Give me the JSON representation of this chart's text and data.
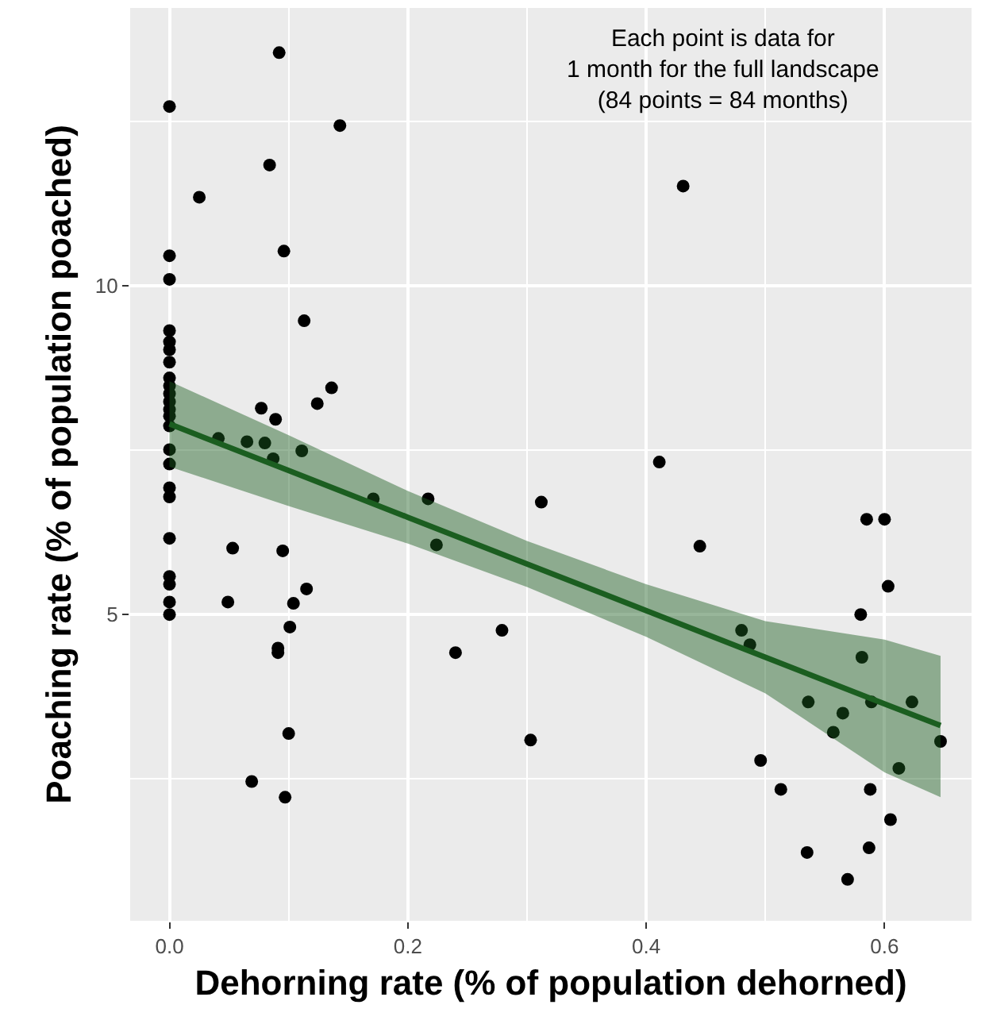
{
  "chart_data": {
    "type": "scatter",
    "xlabel": "Dehorning rate (% of population dehorned)",
    "ylabel": "Poaching rate (% of population poached)",
    "annotations": [
      "Each point is data for\n1 month for the full landscape\n(84 points = 84 months)"
    ],
    "xlim": [
      -0.033,
      0.673
    ],
    "ylim": [
      0.34,
      14.23
    ],
    "xticks": [
      {
        "value": 0,
        "label": "0.0"
      },
      {
        "value": 0.2,
        "label": "0.2"
      },
      {
        "value": 0.4,
        "label": "0.4"
      },
      {
        "value": 0.6,
        "label": "0.6"
      }
    ],
    "yticks": [
      5,
      10
    ],
    "grid": true,
    "marker": "circle",
    "series": [
      {
        "color": "#000000",
        "x": [
          0,
          0,
          0,
          0,
          0,
          0,
          0,
          0,
          0,
          0,
          0,
          0,
          0,
          0,
          0,
          0,
          0,
          0,
          0,
          0,
          0,
          0,
          0,
          0.092,
          0.143,
          0.084,
          0.025,
          0.096,
          0.113,
          0.136,
          0.124,
          0.077,
          0.089,
          0.041,
          0.065,
          0.08,
          0.111,
          0.087,
          0.171,
          0.217,
          0.224,
          0.312,
          0.053,
          0.095,
          0.115,
          0.049,
          0.104,
          0.101,
          0.091,
          0.091,
          0.24,
          0.279,
          0.1,
          0.069,
          0.097,
          0.303,
          0.431,
          0.411,
          0.445,
          0.48,
          0.487,
          0.496,
          0.513,
          0.536,
          0.535,
          0.565,
          0.557,
          0.569,
          0.58,
          0.581,
          0.589,
          0.585,
          0.6,
          0.603,
          0.623,
          0.612,
          0.588,
          0.605,
          0.587,
          0.647
        ],
        "values": [
          12.73,
          10.46,
          10.1,
          9.32,
          9.15,
          9.03,
          8.84,
          8.6,
          8.48,
          8.36,
          8.24,
          8.12,
          8.02,
          7.87,
          7.51,
          7.29,
          6.93,
          6.79,
          6.16,
          5.58,
          5.46,
          5.19,
          5.0,
          13.55,
          12.44,
          11.84,
          11.35,
          10.53,
          9.47,
          8.45,
          8.21,
          8.14,
          7.97,
          7.68,
          7.63,
          7.61,
          7.49,
          7.37,
          6.76,
          6.76,
          6.06,
          6.71,
          6.01,
          5.97,
          5.39,
          5.19,
          5.17,
          4.81,
          4.49,
          4.42,
          4.42,
          4.76,
          3.19,
          2.46,
          2.22,
          3.09,
          11.52,
          7.32,
          6.04,
          4.76,
          4.54,
          2.78,
          2.34,
          3.67,
          1.38,
          3.5,
          3.21,
          0.97,
          5.0,
          4.35,
          3.67,
          6.45,
          6.45,
          5.43,
          3.67,
          2.66,
          2.34,
          1.88,
          1.45,
          3.07
        ]
      },
      {
        "type": "line",
        "color": "#1b5e20",
        "marker": "none",
        "line_style": "solid",
        "x": [
          0,
          0.1,
          0.2,
          0.3,
          0.4,
          0.5,
          0.6,
          0.647
        ],
        "values": [
          7.9,
          7.19,
          6.48,
          5.77,
          5.06,
          4.35,
          3.64,
          3.31
        ],
        "lower": [
          7.25,
          6.65,
          6.08,
          5.42,
          4.66,
          3.8,
          2.6,
          2.22
        ],
        "upper": [
          8.55,
          7.73,
          6.88,
          6.12,
          5.46,
          4.9,
          4.62,
          4.37
        ]
      }
    ]
  }
}
